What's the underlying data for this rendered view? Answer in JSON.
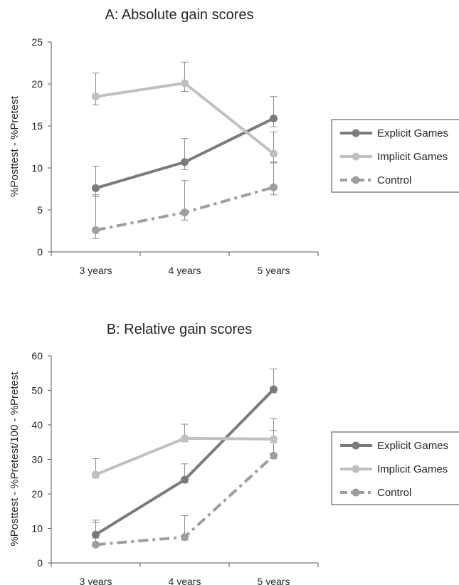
{
  "chart_data": [
    {
      "type": "line",
      "title": "A: Absolute gain scores",
      "xlabel": "",
      "ylabel": "%Posttest - %Pretest",
      "categories": [
        "3 years",
        "4 years",
        "5 years"
      ],
      "ylim": [
        0,
        25
      ],
      "yticks": [
        "0",
        "5",
        "10",
        "15",
        "20",
        "25"
      ],
      "legend_position": "right",
      "series": [
        {
          "name": "Explicit Games",
          "values": [
            7.6,
            10.7,
            15.9
          ],
          "err_upper": [
            10.2,
            13.5,
            18.5
          ],
          "err_lower": [
            6.6,
            9.8,
            14.9
          ],
          "color": "#7b7b7b",
          "style": "solid"
        },
        {
          "name": "Implicit Games",
          "values": [
            18.5,
            20.1,
            11.7
          ],
          "err_upper": [
            21.3,
            22.6,
            14.3
          ],
          "err_lower": [
            17.5,
            19.1,
            10.7
          ],
          "color": "#c0c0c0",
          "style": "solid"
        },
        {
          "name": "Control",
          "values": [
            2.6,
            4.7,
            7.7
          ],
          "err_upper": [
            6.8,
            8.5,
            10.6
          ],
          "err_lower": [
            1.6,
            3.8,
            6.8
          ],
          "color": "#9e9e9e",
          "style": "dashdot"
        }
      ]
    },
    {
      "type": "line",
      "title": "B: Relative gain scores",
      "xlabel": "",
      "ylabel": "%Posttest - %Pretest/100 - %Pretest",
      "categories": [
        "3 years",
        "4 years",
        "5 years"
      ],
      "ylim": [
        0,
        60
      ],
      "yticks": [
        "0",
        "10",
        "20",
        "30",
        "40",
        "50",
        "60"
      ],
      "legend_position": "right",
      "series": [
        {
          "name": "Explicit Games",
          "values": [
            8.2,
            24.1,
            50.3
          ],
          "err_upper": [
            12.4,
            28.7,
            56.2
          ],
          "err_lower": [
            7.2,
            23.2,
            49.3
          ],
          "color": "#7b7b7b",
          "style": "solid"
        },
        {
          "name": "Implicit Games",
          "values": [
            25.6,
            36.1,
            35.9
          ],
          "err_upper": [
            30.2,
            40.2,
            41.8
          ],
          "err_lower": [
            24.6,
            35.1,
            34.9
          ],
          "color": "#c0c0c0",
          "style": "solid"
        },
        {
          "name": "Control",
          "values": [
            5.3,
            7.5,
            31.1
          ],
          "err_upper": [
            11.7,
            13.7,
            38.4
          ],
          "err_lower": [
            4.9,
            6.6,
            30.2
          ],
          "color": "#9e9e9e",
          "style": "dashdot"
        }
      ]
    }
  ]
}
